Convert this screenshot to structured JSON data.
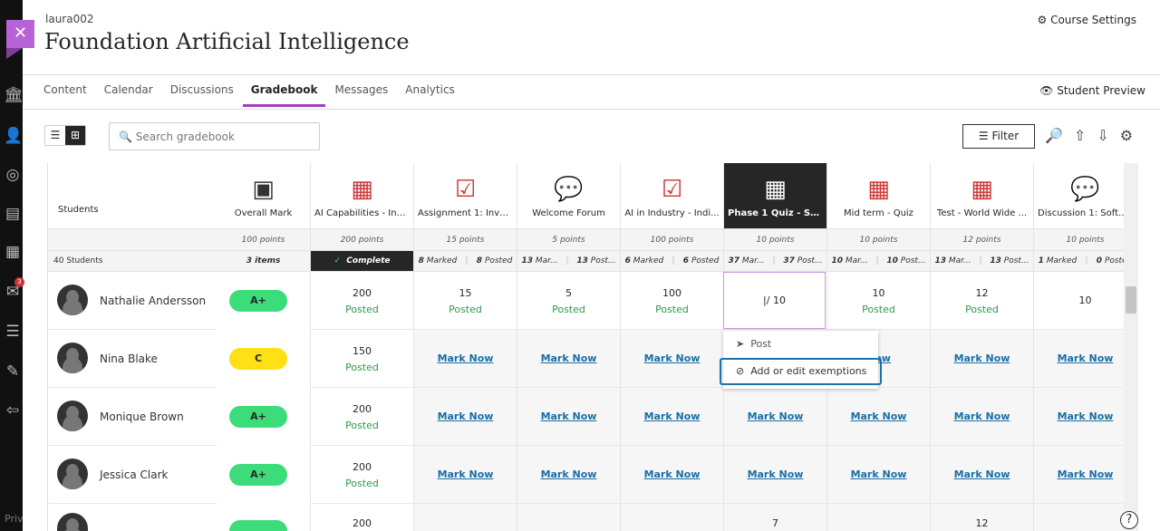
{
  "app": {
    "username": "laura002",
    "course_title": "Foundation Artificial Intelligence",
    "course_settings": "Course Settings",
    "student_preview": "Student Preview",
    "privacy": "Priv",
    "mail_badge": "3",
    "accent": "#a03fbf"
  },
  "nav": {
    "tabs": [
      "Content",
      "Calendar",
      "Discussions",
      "Gradebook",
      "Messages",
      "Analytics"
    ],
    "active": "Gradebook"
  },
  "toolbar": {
    "search_placeholder": "Search gradebook",
    "filter": "Filter"
  },
  "grid": {
    "students_header": "Students",
    "student_count": "40 Students",
    "overall": {
      "label": "Overall Mark",
      "points": "100 points",
      "count": "3 items"
    },
    "columns": [
      {
        "label": "AI Capabilities - Ind...",
        "icon": "test-icon",
        "points": "200 points",
        "status": "Complete",
        "marked": "",
        "posted": ""
      },
      {
        "label": "Assignment 1: Inve...",
        "icon": "assignment-icon",
        "points": "15 points",
        "marked": "8",
        "marked_label": "Marked",
        "posted": "8",
        "posted_label": "Posted"
      },
      {
        "label": "Welcome Forum",
        "icon": "discussion-icon",
        "points": "5 points",
        "marked": "13",
        "marked_label": "Mar...",
        "posted": "13",
        "posted_label": "Post..."
      },
      {
        "label": "AI in Industry - Indi...",
        "icon": "assignment-icon",
        "points": "100 points",
        "marked": "6",
        "marked_label": "Marked",
        "posted": "6",
        "posted_label": "Posted"
      },
      {
        "label": "Phase 1 Quiz - Soft...",
        "icon": "test-icon",
        "points": "10 points",
        "marked": "37",
        "marked_label": "Mar...",
        "posted": "37",
        "posted_label": "Post..."
      },
      {
        "label": "Mid term - Quiz",
        "icon": "test-icon",
        "points": "10 points",
        "marked": "10",
        "marked_label": "Mar...",
        "posted": "10",
        "posted_label": "Post..."
      },
      {
        "label": "Test - World Wide ...",
        "icon": "test-icon",
        "points": "12 points",
        "marked": "13",
        "marked_label": "Mar...",
        "posted": "13",
        "posted_label": "Post..."
      },
      {
        "label": "Discussion 1: Softw...",
        "icon": "discussion-icon",
        "points": "10 points",
        "marked": "1",
        "marked_label": "Marked",
        "posted": "0",
        "posted_label": "Posted"
      }
    ],
    "rows": [
      {
        "name": "Nathalie Andersson",
        "grade": "A+",
        "grade_color": "#3ddc7a",
        "cells": [
          [
            "200",
            "Posted"
          ],
          [
            "15",
            "Posted"
          ],
          [
            "5",
            "Posted"
          ],
          [
            "100",
            "Posted"
          ],
          [
            "edit",
            "/ 10"
          ],
          [
            "10",
            "Posted"
          ],
          [
            "12",
            "Posted"
          ],
          [
            "10",
            ""
          ]
        ]
      },
      {
        "name": "Nina Blake",
        "grade": "C",
        "grade_color": "#ffe014",
        "cells": [
          [
            "150",
            "Posted"
          ],
          [
            "mark",
            "Mark Now"
          ],
          [
            "mark",
            "Mark Now"
          ],
          [
            "mark",
            "Mark Now"
          ],
          [
            "",
            ""
          ],
          [
            "mark",
            "Now"
          ],
          [
            "mark",
            "Mark Now"
          ],
          [
            "mark",
            "Mark Now"
          ]
        ]
      },
      {
        "name": "Monique Brown",
        "grade": "A+",
        "grade_color": "#3ddc7a",
        "cells": [
          [
            "200",
            "Posted"
          ],
          [
            "mark",
            "Mark Now"
          ],
          [
            "mark",
            "Mark Now"
          ],
          [
            "mark",
            "Mark Now"
          ],
          [
            "mark",
            "Mark Now"
          ],
          [
            "mark",
            "Mark Now"
          ],
          [
            "mark",
            "Mark Now"
          ],
          [
            "mark",
            "Mark Now"
          ]
        ]
      },
      {
        "name": "Jessica Clark",
        "grade": "A+",
        "grade_color": "#3ddc7a",
        "cells": [
          [
            "200",
            "Posted"
          ],
          [
            "mark",
            "Mark Now"
          ],
          [
            "mark",
            "Mark Now"
          ],
          [
            "mark",
            "Mark Now"
          ],
          [
            "mark",
            "Mark Now"
          ],
          [
            "mark",
            "Mark Now"
          ],
          [
            "mark",
            "Mark Now"
          ],
          [
            "mark",
            "Mark Now"
          ]
        ]
      },
      {
        "name": "",
        "grade": "",
        "grade_color": "#3ddc7a",
        "cells": [
          [
            "200",
            ""
          ],
          [
            "",
            ""
          ],
          [
            "",
            ""
          ],
          [
            "",
            ""
          ],
          [
            "7",
            ""
          ],
          [
            "",
            ""
          ],
          [
            "12",
            ""
          ],
          [
            "",
            ""
          ]
        ]
      }
    ]
  },
  "menu": {
    "items": [
      "Post",
      "Add or edit exemptions"
    ]
  }
}
